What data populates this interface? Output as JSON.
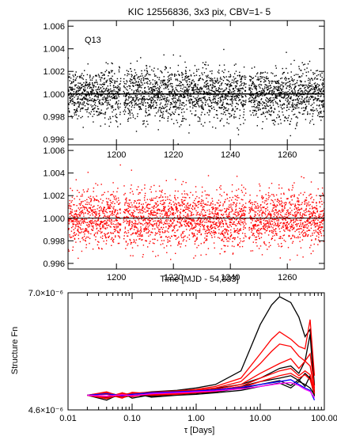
{
  "chart_data": [
    {
      "type": "scatter",
      "title": "KIC 12556836,  3x3 pix, CBV=1- 5",
      "annotation": "Q13",
      "point_color": "#000000",
      "ref_line": 1.0,
      "xlim": [
        1183,
        1273
      ],
      "ylim": [
        0.9955,
        1.0065
      ],
      "x_ticks": [
        1200,
        1220,
        1240,
        1260
      ],
      "y_ticks": [
        0.996,
        0.998,
        1.0,
        1.002,
        1.004,
        1.006
      ],
      "y_tick_labels": [
        "0.996",
        "0.998",
        "1.000",
        "1.002",
        "1.004",
        "1.006"
      ],
      "gaps": [
        [
          1201.5,
          1202.5
        ],
        [
          1245.5,
          1246.5
        ]
      ],
      "scatter_sigma": 0.00115
    },
    {
      "type": "scatter",
      "point_color": "#ff0000",
      "ref_line": 1.0,
      "xlim": [
        1183,
        1273
      ],
      "ylim": [
        0.9955,
        1.0065
      ],
      "x_ticks": [
        1200,
        1220,
        1240,
        1260
      ],
      "x_tick_labels": [
        "1200",
        "1220",
        "1240",
        "1260"
      ],
      "y_ticks": [
        0.996,
        0.998,
        1.0,
        1.002,
        1.004,
        1.006
      ],
      "y_tick_labels": [
        "0.996",
        "0.998",
        "1.000",
        "1.002",
        "1.004",
        "1.006"
      ],
      "xlabel": "Time [MJD - 54,833]",
      "gaps": [
        [
          1201.5,
          1202.5
        ],
        [
          1245.5,
          1246.5
        ]
      ],
      "scatter_sigma": 0.00125
    },
    {
      "type": "line",
      "xscale": "log",
      "xlim": [
        0.01,
        100
      ],
      "ylim": [
        4.6e-06,
        7e-06
      ],
      "x_ticks": [
        0.01,
        0.1,
        1.0,
        10.0,
        100.0
      ],
      "x_tick_labels": [
        "0.01",
        "0.10",
        "1.00",
        "10.00",
        "100.00"
      ],
      "xlabel": "τ [Days]",
      "ylabel": "Structure Fn",
      "y_tick_labels": [
        "4.6×10⁻⁶",
        "7.0×10⁻⁶"
      ],
      "series": [
        {
          "color": "#000000",
          "x": [
            0.02,
            0.04,
            0.07,
            0.1,
            0.2,
            0.5,
            1,
            2,
            5,
            10,
            15,
            20,
            30,
            40,
            50,
            60,
            70
          ],
          "y": [
            4.9e-06,
            4.96e-06,
            4.88e-06,
            4.93e-06,
            4.97e-06,
            5e-06,
            5.05e-06,
            5.12e-06,
            5.4e-06,
            6.35e-06,
            6.75e-06,
            6.92e-06,
            6.8e-06,
            6.5e-06,
            6.1e-06,
            6.25e-06,
            5.1e-06
          ]
        },
        {
          "color": "#000000",
          "x": [
            0.02,
            0.04,
            0.07,
            0.1,
            0.2,
            0.5,
            1,
            2,
            5,
            10,
            20,
            30,
            40,
            50,
            60,
            70
          ],
          "y": [
            4.9e-06,
            4.86e-06,
            4.92e-06,
            4.88e-06,
            4.95e-06,
            4.98e-06,
            5e-06,
            5.04e-06,
            5.12e-06,
            5.25e-06,
            5.45e-06,
            5.5e-06,
            5.35e-06,
            5.6e-06,
            6.15e-06,
            4.95e-06
          ]
        },
        {
          "color": "#000000",
          "x": [
            0.02,
            0.04,
            0.07,
            0.1,
            0.2,
            0.5,
            1,
            2,
            5,
            10,
            20,
            30,
            40,
            50,
            60,
            70
          ],
          "y": [
            4.9e-06,
            4.8e-06,
            4.95e-06,
            4.84e-06,
            4.91e-06,
            4.94e-06,
            4.96e-06,
            5e-06,
            5.08e-06,
            5.18e-06,
            5.25e-06,
            5.3e-06,
            5.2e-06,
            5.35e-06,
            5.25e-06,
            4.88e-06
          ]
        },
        {
          "color": "#000000",
          "x": [
            0.02,
            0.04,
            0.07,
            0.1,
            0.2,
            0.5,
            1,
            2,
            5,
            10,
            20,
            30,
            40,
            50,
            60,
            70
          ],
          "y": [
            4.9e-06,
            4.94e-06,
            4.85e-06,
            4.9e-06,
            4.88e-06,
            4.92e-06,
            4.94e-06,
            4.97e-06,
            5.04e-06,
            5.12e-06,
            5.2e-06,
            5.1e-06,
            5.22e-06,
            5.08e-06,
            5.3e-06,
            4.92e-06
          ]
        },
        {
          "color": "#000000",
          "x": [
            0.02,
            0.04,
            0.07,
            0.1,
            0.2,
            0.5,
            1,
            2,
            5,
            10,
            20,
            30,
            40,
            50,
            60,
            70
          ],
          "y": [
            4.9e-06,
            4.84e-06,
            4.9e-06,
            4.95e-06,
            4.86e-06,
            4.9e-06,
            4.92e-06,
            4.95e-06,
            5e-06,
            5.08e-06,
            5.15e-06,
            5.05e-06,
            5.18e-06,
            5.12e-06,
            5.05e-06,
            4.9e-06
          ]
        },
        {
          "color": "#ff0000",
          "x": [
            0.02,
            0.04,
            0.07,
            0.1,
            0.2,
            0.5,
            1,
            2,
            5,
            10,
            15,
            20,
            30,
            40,
            50,
            60,
            70
          ],
          "y": [
            4.9e-06,
            4.97e-06,
            4.86e-06,
            4.94e-06,
            4.96e-06,
            4.99e-06,
            5.02e-06,
            5.08e-06,
            5.25e-06,
            5.75e-06,
            6.05e-06,
            6.2e-06,
            6.05e-06,
            5.9e-06,
            5.85e-06,
            6.45e-06,
            5.3e-06
          ]
        },
        {
          "color": "#ff0000",
          "x": [
            0.02,
            0.04,
            0.07,
            0.1,
            0.2,
            0.5,
            1,
            2,
            5,
            10,
            15,
            20,
            30,
            40,
            50,
            60,
            70
          ],
          "y": [
            4.9e-06,
            4.83e-06,
            4.93e-06,
            4.87e-06,
            4.94e-06,
            4.97e-06,
            5e-06,
            5.05e-06,
            5.18e-06,
            5.55e-06,
            5.8e-06,
            5.95e-06,
            5.9e-06,
            5.7e-06,
            5.6e-06,
            5.75e-06,
            5.05e-06
          ]
        },
        {
          "color": "#ff0000",
          "x": [
            0.02,
            0.04,
            0.07,
            0.1,
            0.2,
            0.5,
            1,
            2,
            5,
            10,
            20,
            30,
            40,
            50,
            60,
            70
          ],
          "y": [
            4.9e-06,
            4.95e-06,
            4.88e-06,
            4.96e-06,
            4.93e-06,
            4.96e-06,
            4.98e-06,
            5.02e-06,
            5.12e-06,
            5.35e-06,
            5.55e-06,
            5.65e-06,
            5.45e-06,
            5.6e-06,
            5.5e-06,
            5e-06
          ]
        },
        {
          "color": "#ff0000",
          "x": [
            0.02,
            0.04,
            0.07,
            0.1,
            0.2,
            0.5,
            1,
            2,
            5,
            10,
            20,
            30,
            40,
            50,
            60,
            70
          ],
          "y": [
            4.9e-06,
            4.86e-06,
            4.95e-06,
            4.9e-06,
            4.91e-06,
            4.94e-06,
            4.97e-06,
            5e-06,
            5.08e-06,
            5.25e-06,
            5.4e-06,
            5.45e-06,
            5.3e-06,
            5.4e-06,
            5.32e-06,
            4.95e-06
          ]
        },
        {
          "color": "#ff0000",
          "x": [
            0.02,
            0.04,
            0.07,
            0.1,
            0.2,
            0.5,
            1,
            2,
            5,
            10,
            20,
            30,
            40,
            50,
            60,
            70
          ],
          "y": [
            4.9e-06,
            4.92e-06,
            4.84e-06,
            4.93e-06,
            4.9e-06,
            4.92e-06,
            4.95e-06,
            4.98e-06,
            5.05e-06,
            5.18e-06,
            5.3e-06,
            5.35e-06,
            5.25e-06,
            5.32e-06,
            5.22e-06,
            4.93e-06
          ]
        },
        {
          "color": "#0000ff",
          "x": [
            0.02,
            0.04,
            0.07,
            0.1,
            0.2,
            0.5,
            1,
            2,
            5,
            10,
            20,
            30,
            40,
            50,
            60,
            70
          ],
          "y": [
            4.9e-06,
            4.93e-06,
            4.89e-06,
            4.92e-06,
            4.95e-06,
            4.97e-06,
            4.99e-06,
            5.01e-06,
            5.06e-06,
            5.12e-06,
            5.18e-06,
            5.22e-06,
            5.12e-06,
            5.05e-06,
            5e-06,
            4.8e-06
          ]
        },
        {
          "color": "#ff00ff",
          "x": [
            0.02,
            0.04,
            0.07,
            0.1,
            0.2,
            0.5,
            1,
            2,
            5,
            10,
            20,
            30,
            40,
            50,
            60,
            70
          ],
          "y": [
            4.9e-06,
            4.88e-06,
            4.91e-06,
            4.89e-06,
            4.93e-06,
            4.95e-06,
            4.97e-06,
            4.99e-06,
            5.03e-06,
            5.08e-06,
            5.14e-06,
            5.16e-06,
            5.1e-06,
            5.02e-06,
            4.98e-06,
            4.85e-06
          ]
        }
      ]
    }
  ]
}
